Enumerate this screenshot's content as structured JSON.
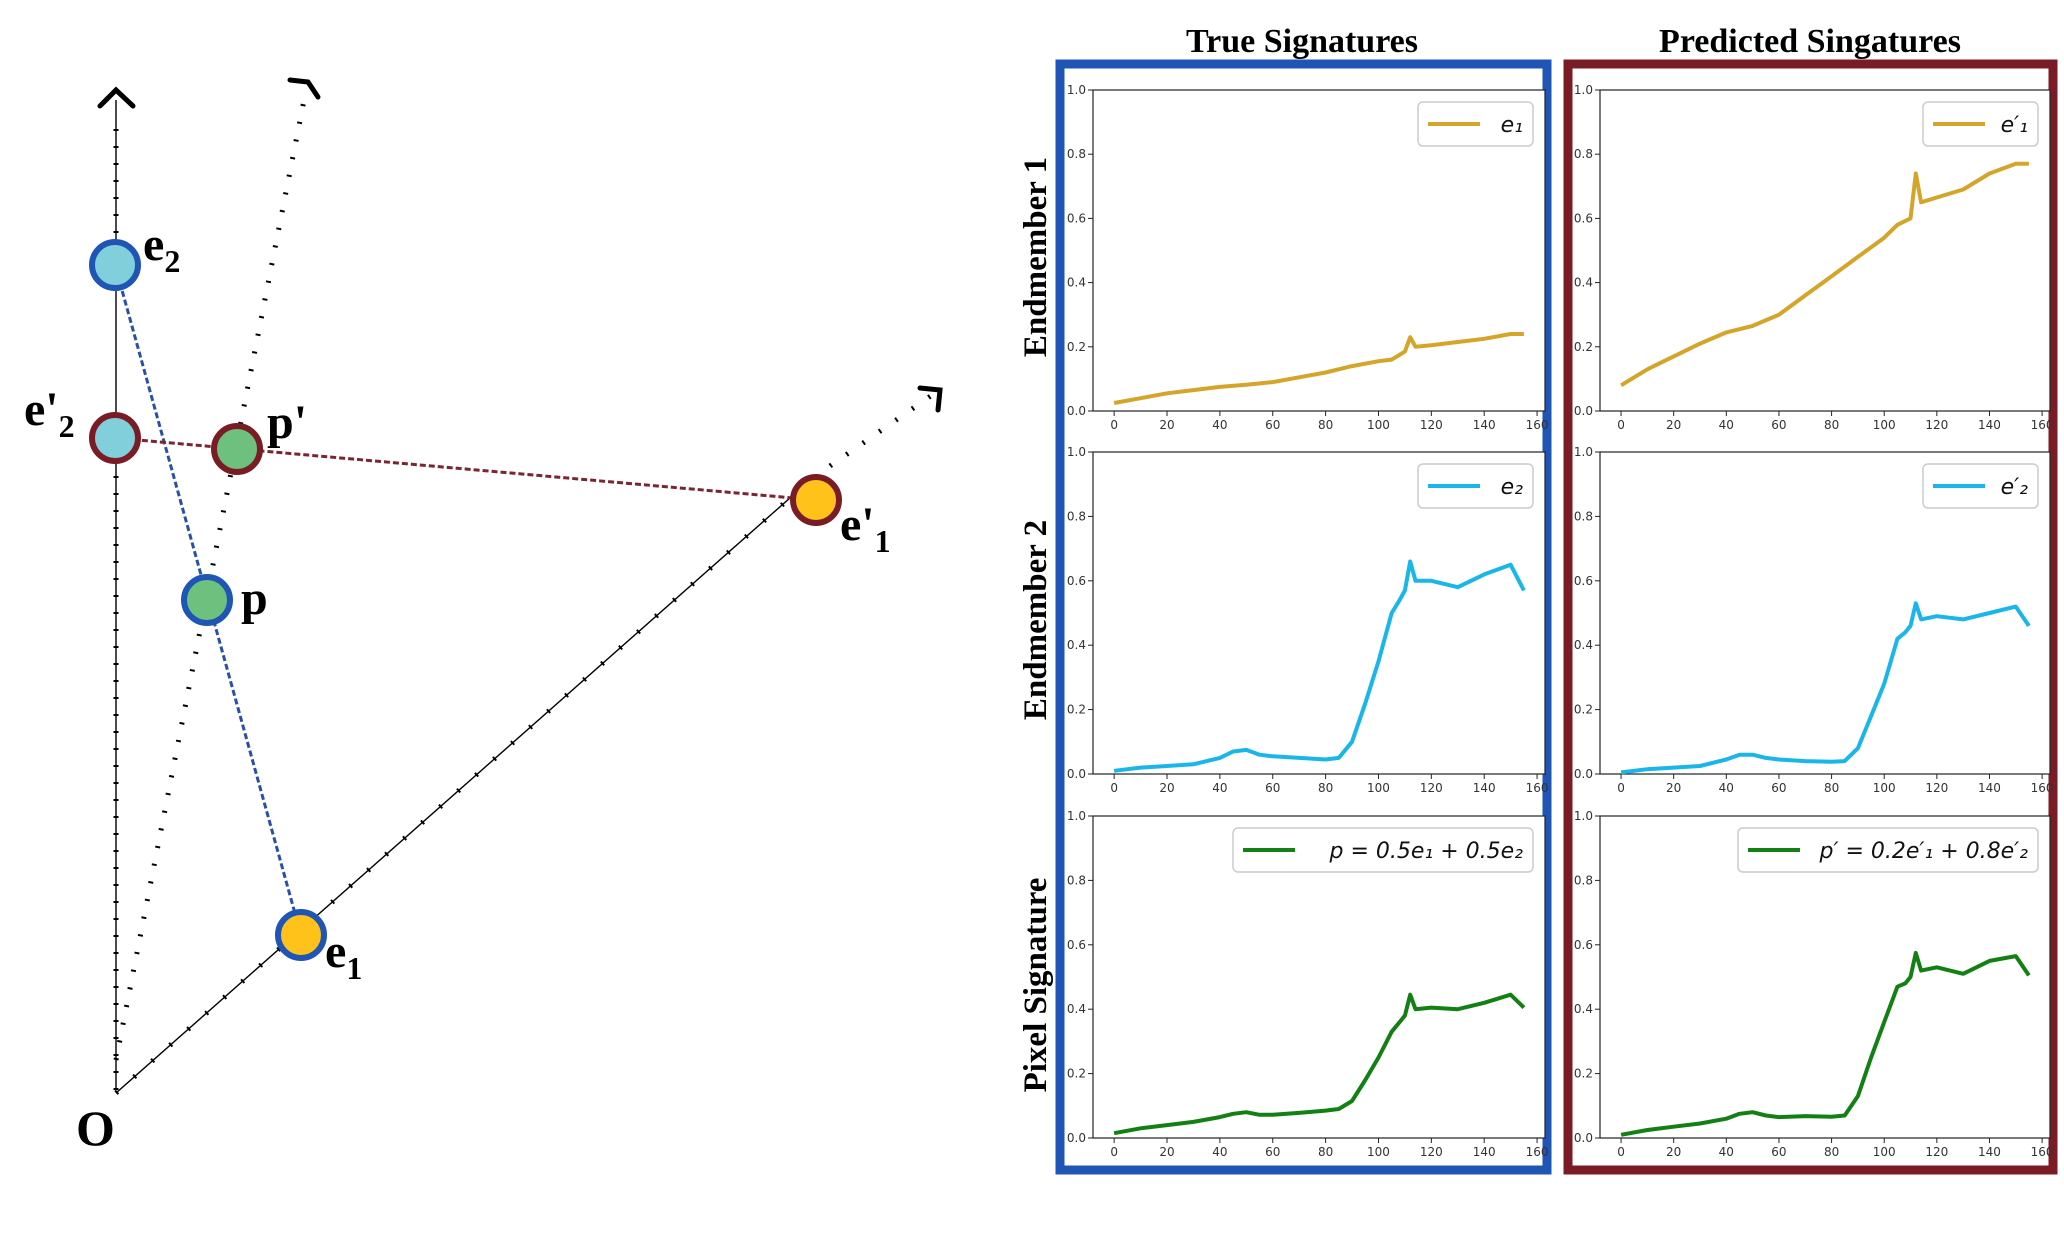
{
  "diagram": {
    "origin_label": "O",
    "points": {
      "e2": {
        "label": "e",
        "sub": "2"
      },
      "e2p": {
        "label": "e'",
        "sub": "2"
      },
      "pp": {
        "label": "p'"
      },
      "p": {
        "label": "p"
      },
      "e1p": {
        "label": "e'",
        "sub": "1"
      },
      "e1": {
        "label": "e",
        "sub": "1"
      }
    },
    "colors": {
      "true_border": "#1f55b5",
      "pred_border": "#7a1c26",
      "cyan_fill": "#82cfdc",
      "green_fill": "#6dc07d",
      "gold_fill": "#ffc21a",
      "blue_link": "#2a4fa8",
      "red_link": "#7a2530"
    }
  },
  "column_titles": [
    "True Signatures",
    "Predicted Singatures"
  ],
  "row_titles": [
    "Endmember 1",
    "Endmember 2",
    "Pixel Signature"
  ],
  "axes": {
    "x_ticks": [
      0,
      20,
      40,
      60,
      80,
      100,
      120,
      140,
      160
    ],
    "y_ticks": [
      "0.0",
      "0.2",
      "0.4",
      "0.6",
      "0.8",
      "1.0"
    ],
    "xlim": [
      -8,
      163
    ],
    "ylim": [
      0,
      1
    ]
  },
  "chart_data": [
    {
      "type": "line",
      "panel": "true-endmember-1",
      "legend": "e₁",
      "color": "#d4a52a",
      "x": [
        0,
        10,
        20,
        30,
        40,
        50,
        60,
        70,
        80,
        90,
        100,
        105,
        110,
        112,
        114,
        120,
        130,
        140,
        150,
        155
      ],
      "y": [
        0.025,
        0.04,
        0.055,
        0.065,
        0.075,
        0.082,
        0.09,
        0.105,
        0.12,
        0.14,
        0.155,
        0.16,
        0.185,
        0.23,
        0.2,
        0.205,
        0.215,
        0.225,
        0.24,
        0.24
      ]
    },
    {
      "type": "line",
      "panel": "pred-endmember-1",
      "legend": "e′₁",
      "color": "#d4a52a",
      "x": [
        0,
        10,
        20,
        30,
        40,
        50,
        60,
        70,
        80,
        90,
        100,
        105,
        110,
        112,
        114,
        120,
        130,
        140,
        150,
        155
      ],
      "y": [
        0.08,
        0.13,
        0.17,
        0.21,
        0.245,
        0.265,
        0.3,
        0.36,
        0.42,
        0.48,
        0.54,
        0.58,
        0.6,
        0.74,
        0.65,
        0.665,
        0.69,
        0.74,
        0.77,
        0.77
      ]
    },
    {
      "type": "line",
      "panel": "true-endmember-2",
      "legend": "e₂",
      "color": "#1ab6ea",
      "x": [
        0,
        10,
        20,
        30,
        40,
        45,
        50,
        55,
        60,
        70,
        80,
        85,
        90,
        95,
        100,
        105,
        108,
        110,
        112,
        114,
        120,
        130,
        140,
        150,
        155
      ],
      "y": [
        0.01,
        0.02,
        0.025,
        0.03,
        0.05,
        0.07,
        0.075,
        0.06,
        0.055,
        0.05,
        0.045,
        0.05,
        0.1,
        0.22,
        0.35,
        0.5,
        0.54,
        0.57,
        0.66,
        0.6,
        0.6,
        0.58,
        0.62,
        0.65,
        0.57
      ]
    },
    {
      "type": "line",
      "panel": "pred-endmember-2",
      "legend": "e′₂",
      "color": "#1ab6ea",
      "x": [
        0,
        10,
        20,
        30,
        40,
        45,
        50,
        55,
        60,
        70,
        80,
        85,
        90,
        95,
        100,
        105,
        108,
        110,
        112,
        114,
        120,
        130,
        140,
        150,
        155
      ],
      "y": [
        0.005,
        0.015,
        0.02,
        0.025,
        0.045,
        0.06,
        0.06,
        0.05,
        0.045,
        0.04,
        0.038,
        0.04,
        0.08,
        0.18,
        0.28,
        0.42,
        0.44,
        0.46,
        0.53,
        0.48,
        0.49,
        0.48,
        0.5,
        0.52,
        0.46
      ]
    },
    {
      "type": "line",
      "panel": "true-pixel",
      "legend": "p = 0.5e₁ + 0.5e₂",
      "color": "#138013",
      "x": [
        0,
        10,
        20,
        30,
        40,
        45,
        50,
        55,
        60,
        70,
        80,
        85,
        90,
        95,
        100,
        105,
        108,
        110,
        112,
        114,
        120,
        130,
        140,
        150,
        155
      ],
      "y": [
        0.015,
        0.03,
        0.04,
        0.05,
        0.065,
        0.075,
        0.08,
        0.072,
        0.072,
        0.078,
        0.085,
        0.09,
        0.115,
        0.18,
        0.25,
        0.33,
        0.36,
        0.38,
        0.445,
        0.4,
        0.405,
        0.4,
        0.42,
        0.445,
        0.405
      ]
    },
    {
      "type": "line",
      "panel": "pred-pixel",
      "legend": "p′ = 0.2e′₁ + 0.8e′₂",
      "color": "#138013",
      "x": [
        0,
        10,
        20,
        30,
        40,
        45,
        50,
        55,
        60,
        70,
        80,
        85,
        90,
        95,
        100,
        105,
        108,
        110,
        112,
        114,
        120,
        130,
        140,
        150,
        155
      ],
      "y": [
        0.01,
        0.025,
        0.035,
        0.045,
        0.06,
        0.075,
        0.08,
        0.07,
        0.065,
        0.068,
        0.066,
        0.07,
        0.13,
        0.25,
        0.36,
        0.47,
        0.48,
        0.5,
        0.575,
        0.52,
        0.53,
        0.51,
        0.55,
        0.565,
        0.505
      ]
    }
  ]
}
